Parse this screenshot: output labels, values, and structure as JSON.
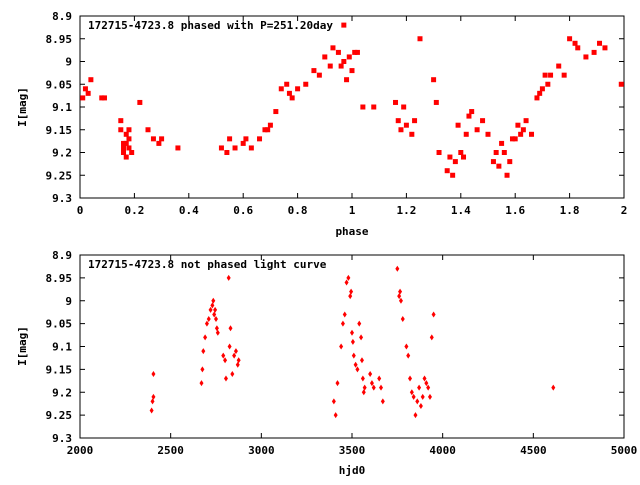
{
  "chart_data": [
    {
      "type": "scatter",
      "title": "172715-4723.8 phased with P=251.20day",
      "xlabel": "phase",
      "ylabel": "I[mag]",
      "xlim": [
        0,
        2
      ],
      "ylim": [
        9.3,
        8.9
      ],
      "y_inverted": true,
      "x_ticks": [
        "0",
        "0.2",
        "0.4",
        "0.6",
        "0.8",
        "1",
        "1.2",
        "1.4",
        "1.6",
        "1.8",
        "2"
      ],
      "y_ticks": [
        "8.9",
        "8.95",
        "9",
        "9.05",
        "9.1",
        "9.15",
        "9.2",
        "9.25",
        "9.3"
      ],
      "color": "#ff0000",
      "x": [
        0.01,
        0.02,
        0.03,
        0.04,
        0.08,
        0.09,
        0.15,
        0.15,
        0.16,
        0.16,
        0.16,
        0.17,
        0.17,
        0.17,
        0.18,
        0.18,
        0.18,
        0.19,
        0.22,
        0.25,
        0.27,
        0.29,
        0.3,
        0.36,
        0.52,
        0.54,
        0.55,
        0.57,
        0.6,
        0.61,
        0.63,
        0.66,
        0.68,
        0.69,
        0.7,
        0.72,
        0.74,
        0.76,
        0.77,
        0.78,
        0.8,
        0.83,
        0.86,
        0.88,
        0.9,
        0.92,
        0.93,
        0.95,
        0.96,
        0.97,
        0.97,
        0.98,
        0.99,
        1.0,
        1.01,
        1.02,
        1.04,
        1.08,
        1.16,
        1.17,
        1.18,
        1.19,
        1.2,
        1.22,
        1.23,
        1.25,
        1.3,
        1.31,
        1.32,
        1.35,
        1.36,
        1.37,
        1.38,
        1.39,
        1.4,
        1.41,
        1.42,
        1.43,
        1.44,
        1.46,
        1.48,
        1.5,
        1.52,
        1.53,
        1.54,
        1.55,
        1.56,
        1.57,
        1.58,
        1.59,
        1.6,
        1.61,
        1.62,
        1.63,
        1.64,
        1.66,
        1.68,
        1.69,
        1.7,
        1.71,
        1.72,
        1.73,
        1.76,
        1.78,
        1.8,
        1.82,
        1.83,
        1.86,
        1.89,
        1.91,
        1.93,
        1.99
      ],
      "y": [
        9.08,
        9.06,
        9.07,
        9.04,
        9.08,
        9.08,
        9.13,
        9.15,
        9.18,
        9.19,
        9.2,
        9.21,
        9.16,
        9.18,
        9.17,
        9.19,
        9.15,
        9.2,
        9.09,
        9.15,
        9.17,
        9.18,
        9.17,
        9.19,
        9.19,
        9.2,
        9.17,
        9.19,
        9.18,
        9.17,
        9.19,
        9.17,
        9.15,
        9.15,
        9.14,
        9.11,
        9.06,
        9.05,
        9.07,
        9.08,
        9.06,
        9.05,
        9.02,
        9.03,
        8.99,
        9.01,
        8.97,
        8.98,
        9.01,
        9.0,
        8.92,
        9.04,
        8.99,
        9.02,
        8.98,
        8.98,
        9.1,
        9.1,
        9.09,
        9.13,
        9.15,
        9.1,
        9.14,
        9.16,
        9.13,
        8.95,
        9.04,
        9.09,
        9.2,
        9.24,
        9.21,
        9.25,
        9.22,
        9.14,
        9.2,
        9.21,
        9.16,
        9.12,
        9.11,
        9.15,
        9.13,
        9.16,
        9.22,
        9.2,
        9.23,
        9.18,
        9.2,
        9.25,
        9.22,
        9.17,
        9.17,
        9.14,
        9.16,
        9.15,
        9.13,
        9.16,
        9.08,
        9.07,
        9.06,
        9.03,
        9.05,
        9.03,
        9.01,
        9.03,
        8.95,
        8.96,
        8.97,
        8.99,
        8.98,
        8.96,
        8.97,
        9.05
      ]
    },
    {
      "type": "scatter",
      "title": "172715-4723.8 not phased light curve",
      "xlabel": "hjd0",
      "ylabel": "I[mag]",
      "xlim": [
        2000,
        5000
      ],
      "ylim": [
        9.3,
        8.9
      ],
      "y_inverted": true,
      "x_ticks": [
        "2000",
        "2500",
        "3000",
        "3500",
        "4000",
        "4500",
        "5000"
      ],
      "y_ticks": [
        "8.9",
        "8.95",
        "9",
        "9.05",
        "9.1",
        "9.15",
        "9.2",
        "9.25",
        "9.3"
      ],
      "color": "#ff0000",
      "x": [
        2395,
        2400,
        2405,
        2405,
        2670,
        2675,
        2680,
        2690,
        2700,
        2710,
        2720,
        2730,
        2735,
        2740,
        2745,
        2750,
        2755,
        2760,
        2790,
        2800,
        2805,
        2820,
        2825,
        2830,
        2840,
        2850,
        2860,
        2870,
        2875,
        3400,
        3410,
        3420,
        3440,
        3450,
        3460,
        3470,
        3480,
        3490,
        3495,
        3500,
        3505,
        3510,
        3520,
        3530,
        3540,
        3550,
        3555,
        3560,
        3565,
        3570,
        3600,
        3610,
        3620,
        3650,
        3660,
        3670,
        3750,
        3760,
        3765,
        3770,
        3780,
        3800,
        3810,
        3820,
        3830,
        3840,
        3850,
        3860,
        3870,
        3880,
        3890,
        3900,
        3910,
        3920,
        3930,
        3940,
        3950,
        4610
      ],
      "y": [
        9.24,
        9.22,
        9.21,
        9.16,
        9.18,
        9.15,
        9.11,
        9.08,
        9.05,
        9.04,
        9.02,
        9.01,
        9.0,
        9.03,
        9.02,
        9.04,
        9.06,
        9.07,
        9.12,
        9.13,
        9.17,
        8.95,
        9.1,
        9.06,
        9.16,
        9.12,
        9.11,
        9.14,
        9.13,
        9.22,
        9.25,
        9.18,
        9.1,
        9.05,
        9.03,
        8.96,
        8.95,
        8.99,
        8.98,
        9.07,
        9.09,
        9.12,
        9.14,
        9.15,
        9.05,
        9.08,
        9.13,
        9.17,
        9.2,
        9.19,
        9.16,
        9.18,
        9.19,
        9.17,
        9.19,
        9.22,
        8.93,
        8.99,
        8.98,
        9.0,
        9.04,
        9.1,
        9.12,
        9.17,
        9.2,
        9.21,
        9.25,
        9.22,
        9.19,
        9.23,
        9.21,
        9.17,
        9.18,
        9.19,
        9.21,
        9.08,
        9.03,
        9.19
      ]
    }
  ]
}
